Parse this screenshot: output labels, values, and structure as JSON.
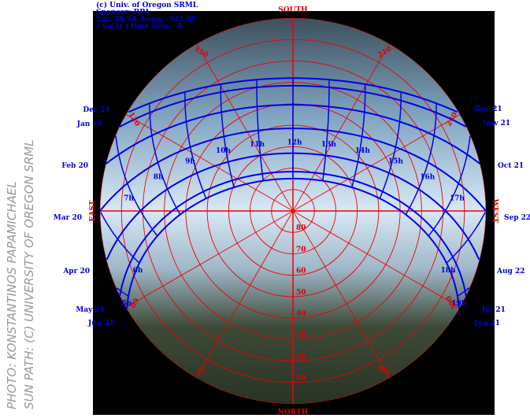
{
  "header": {
    "lines": [
      "(c) Univ. of Oregon SRML",
      "Sponsor: BPA",
      "Lat: 38.54; Long: -121.65",
      "( Solar ) time zone: -8"
    ]
  },
  "credits": [
    "PHOTO: KONSTANTINOS PAPAMICHAEL",
    "SUN PATH: (C) UNIVERSITY OF OREGON SRML"
  ],
  "compass": {
    "south": "SOUTH",
    "east": "EAST",
    "west": "WEST",
    "north": "NORTH"
  },
  "azimuth_labels": [
    "150",
    "210",
    "120",
    "240",
    "60",
    "300",
    "30",
    "330"
  ],
  "altitude_labels": [
    "80",
    "70",
    "60",
    "50",
    "40",
    "30",
    "20",
    "10"
  ],
  "dates_left": [
    "Dec 21",
    "Jan 21",
    "Feb 20",
    "Mar 20",
    "Apr 20",
    "May 21",
    "Jun 21"
  ],
  "dates_right": [
    "Dec 21",
    "Nov 21",
    "Oct 21",
    "Sep 22",
    "Aug 22",
    "Jul 21",
    "Jun 21"
  ],
  "hours": [
    "5h",
    "6h",
    "7h",
    "8h",
    "9h",
    "10h",
    "11h",
    "12h",
    "13h",
    "14h",
    "15h",
    "16h",
    "17h",
    "18h",
    "19h"
  ]
}
